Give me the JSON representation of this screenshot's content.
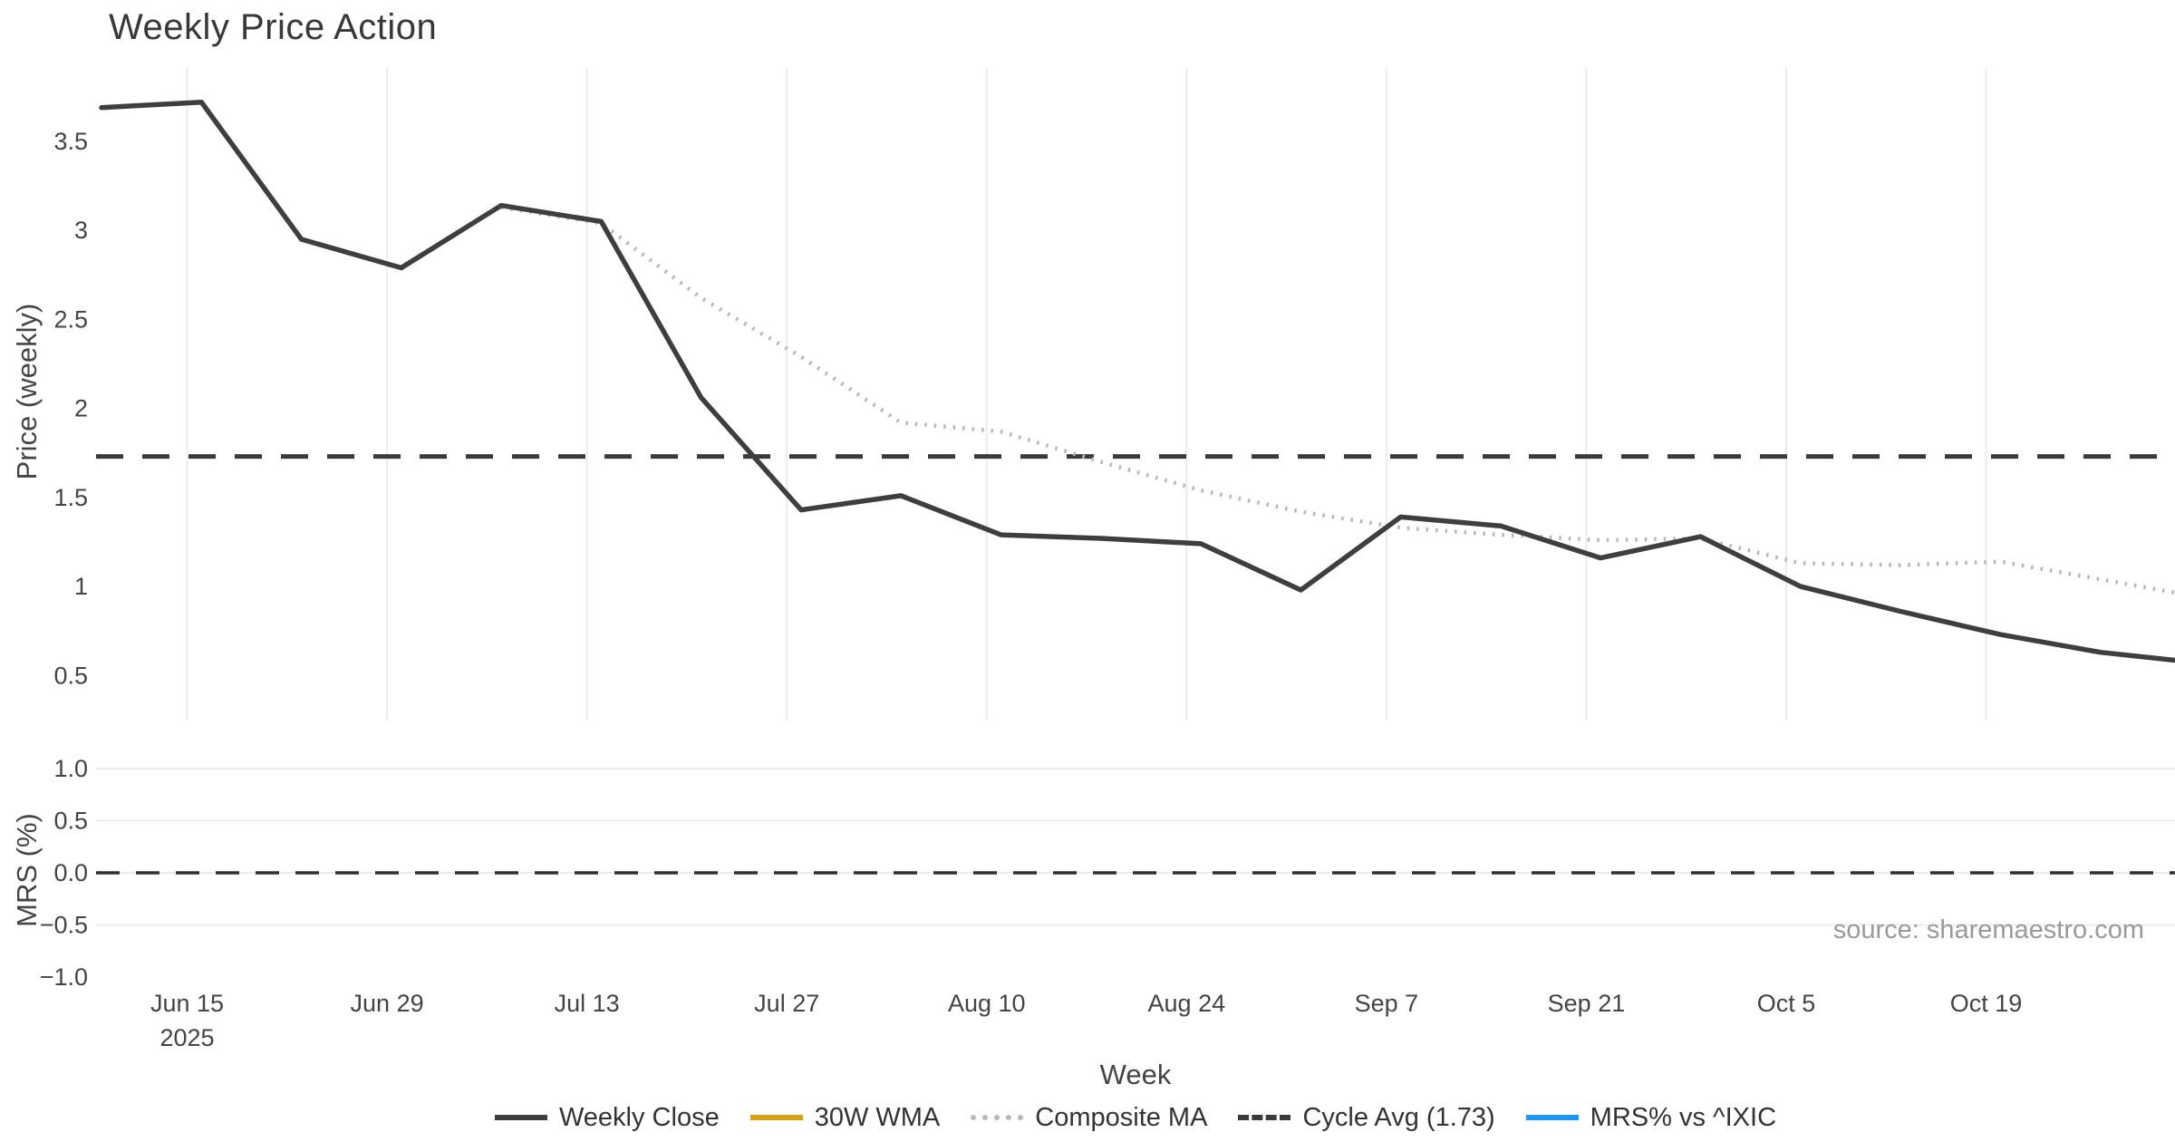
{
  "title": "Weekly Price Action",
  "source_note": "source: sharemaestro.com",
  "price_axis": {
    "title": "Price (weekly)",
    "ticks": [
      {
        "label": "3.5",
        "value": 3.5
      },
      {
        "label": "3",
        "value": 3.0
      },
      {
        "label": "2.5",
        "value": 2.5
      },
      {
        "label": "2",
        "value": 2.0
      },
      {
        "label": "1.5",
        "value": 1.5
      },
      {
        "label": "1",
        "value": 1.0
      },
      {
        "label": "0.5",
        "value": 0.5
      }
    ]
  },
  "mrs_axis": {
    "title": "MRS (%)",
    "ticks": [
      {
        "label": "1.0",
        "value": 1.0,
        "grid": true
      },
      {
        "label": "0.5",
        "value": 0.5,
        "grid": true
      },
      {
        "label": "0.0",
        "value": 0.0,
        "grid": true
      },
      {
        "label": "−0.5",
        "value": -0.5,
        "grid": true
      },
      {
        "label": "−1.0",
        "value": -1.0,
        "grid": false
      }
    ]
  },
  "x_axis": {
    "title": "Week",
    "ticks": [
      {
        "label": "Jun 15",
        "sublabel": "2025"
      },
      {
        "label": "Jun 29"
      },
      {
        "label": "Jul 13"
      },
      {
        "label": "Jul 27"
      },
      {
        "label": "Aug 10"
      },
      {
        "label": "Aug 24"
      },
      {
        "label": "Sep 7"
      },
      {
        "label": "Sep 21"
      },
      {
        "label": "Oct 5"
      },
      {
        "label": "Oct 19"
      }
    ]
  },
  "legend": [
    {
      "label": "Weekly Close",
      "color": "#3e3e3e",
      "style": "solid"
    },
    {
      "label": "30W WMA",
      "color": "#d4a017",
      "style": "solid"
    },
    {
      "label": "Composite MA",
      "color": "#b7b7b7",
      "style": "dotted"
    },
    {
      "label": "Cycle Avg (1.73)",
      "color": "#3a3a3a",
      "style": "dashed"
    },
    {
      "label": "MRS% vs ^IXIC",
      "color": "#2196f3",
      "style": "solid"
    }
  ],
  "chart_data": [
    {
      "type": "line",
      "title": "Weekly Price Action",
      "xlabel": "Week",
      "ylabel": "Price (weekly)",
      "ylim": [
        0.38,
        3.91
      ],
      "grid": "vertical-only",
      "legend_position": "bottom-center",
      "x": [
        "2025-06-09",
        "2025-06-16",
        "2025-06-23",
        "2025-06-30",
        "2025-07-07",
        "2025-07-14",
        "2025-07-21",
        "2025-07-28",
        "2025-08-04",
        "2025-08-11",
        "2025-08-18",
        "2025-08-25",
        "2025-09-01",
        "2025-09-08",
        "2025-09-15",
        "2025-09-22",
        "2025-09-29",
        "2025-10-06",
        "2025-10-13",
        "2025-10-20",
        "2025-10-27",
        "2025-11-03"
      ],
      "series": [
        {
          "name": "Weekly Close",
          "style": "solid",
          "color": "#3e3e3e",
          "values": [
            3.69,
            3.72,
            2.95,
            2.79,
            3.14,
            3.05,
            2.06,
            1.43,
            1.51,
            1.29,
            1.27,
            1.24,
            0.98,
            1.39,
            1.34,
            1.16,
            1.28,
            1.0,
            0.86,
            0.73,
            0.63,
            0.57
          ]
        },
        {
          "name": "30W WMA",
          "style": "solid",
          "color": "#d4a017",
          "values": []
        },
        {
          "name": "Composite MA",
          "style": "dotted",
          "color": "#b7b7b7",
          "values": [
            null,
            null,
            null,
            null,
            3.13,
            3.04,
            2.62,
            2.29,
            1.92,
            1.87,
            1.7,
            1.54,
            1.42,
            1.33,
            1.29,
            1.26,
            1.27,
            1.13,
            1.12,
            1.14,
            1.04,
            0.94
          ]
        },
        {
          "name": "Cycle Avg",
          "style": "dashed",
          "color": "#3a3a3a",
          "constant": 1.73
        }
      ]
    },
    {
      "type": "line",
      "ylabel": "MRS (%)",
      "ylim": [
        -1.15,
        1.15
      ],
      "grid": "horizontal-only",
      "series": [
        {
          "name": "MRS% vs ^IXIC",
          "style": "solid",
          "color": "#2196f3",
          "values": []
        },
        {
          "name": "Zero line",
          "style": "dashed",
          "color": "#2f2f2f",
          "constant": 0.0
        }
      ]
    }
  ]
}
